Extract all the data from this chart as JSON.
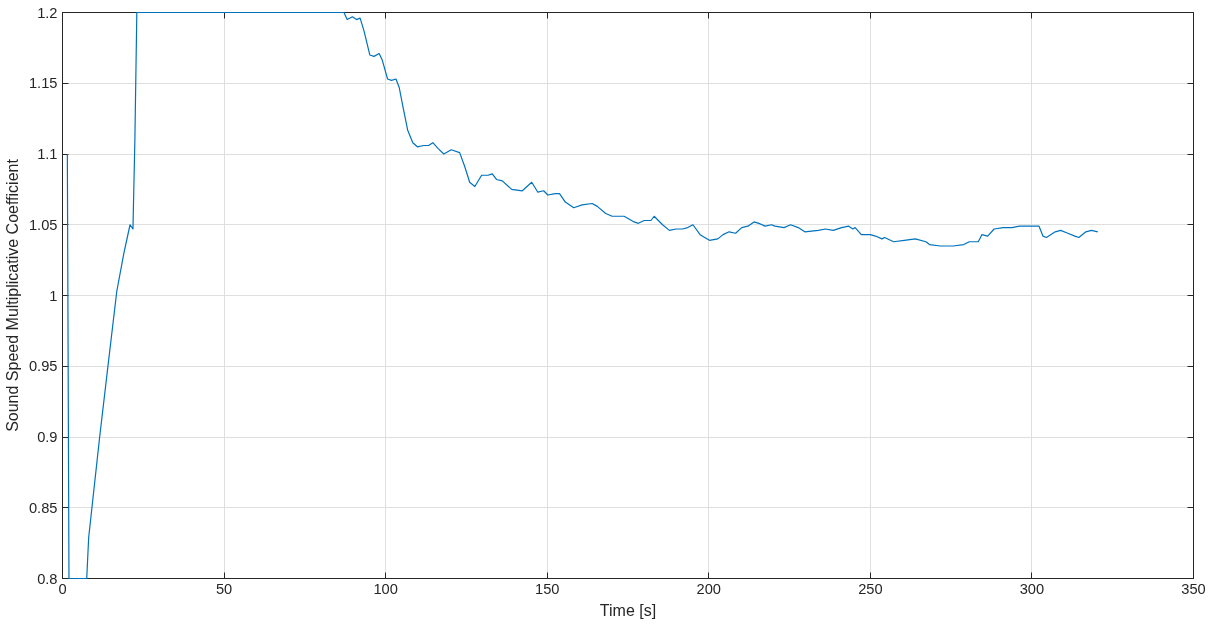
{
  "chart_data": {
    "type": "line",
    "xlabel": "Time [s]",
    "ylabel": "Sound Speed Multiplicative Coefficient",
    "xlim": [
      0,
      350
    ],
    "ylim": [
      0.8,
      1.2
    ],
    "xticks": [
      0,
      50,
      100,
      150,
      200,
      250,
      300,
      350
    ],
    "yticks": [
      0.8,
      0.85,
      0.9,
      0.95,
      1,
      1.05,
      1.1,
      1.15,
      1.2
    ],
    "grid": true,
    "marker": "none",
    "line_style": "solid",
    "series": [
      {
        "color": "#0072bd",
        "x": [
          1.5,
          2.0,
          7.5,
          8.1,
          11.5,
          13.7,
          16.8,
          19.0,
          20.9,
          21.8,
          22.4,
          23.0,
          87.1,
          88.1,
          89.7,
          91.0,
          92.1,
          93.3,
          95.1,
          96.4,
          98.0,
          99.0,
          100.6,
          101.8,
          103.2,
          104.2,
          105.3,
          106.8,
          108.4,
          109.9,
          111.8,
          113.3,
          114.6,
          116.2,
          118.0,
          120.3,
          122.9,
          124.5,
          126.0,
          127.6,
          129.7,
          131.7,
          133.0,
          134.3,
          136.1,
          139.0,
          142.3,
          145.2,
          147.1,
          148.9,
          150.2,
          152.5,
          153.8,
          155.6,
          158.2,
          160.8,
          163.9,
          165.5,
          168.1,
          170.1,
          173.8,
          176.9,
          178.2,
          180.0,
          182.1,
          183.1,
          185.7,
          187.8,
          189.9,
          191.9,
          193.5,
          195.1,
          197.3,
          200.2,
          202.8,
          204.4,
          206.3,
          208.3,
          210.2,
          212.1,
          214.0,
          215.5,
          217.4,
          219.4,
          220.5,
          223.3,
          225.3,
          227.7,
          229.7,
          233.9,
          236.1,
          238.5,
          241.1,
          243.3,
          244.6,
          245.3,
          247.2,
          250.0,
          251.6,
          253.6,
          254.4,
          257.2,
          260.5,
          263.9,
          267.2,
          268.3,
          271.7,
          273.9,
          275.6,
          278.9,
          280.6,
          282.2,
          283.4,
          284.5,
          286.3,
          288.3,
          291.1,
          293.9,
          296.1,
          299.5,
          302.2,
          303.4,
          304.5,
          307.2,
          308.9,
          311.1,
          313.3,
          314.5,
          316.7,
          318.4,
          320.4
        ],
        "values": [
          1.1,
          0.8,
          0.8,
          0.829,
          0.9,
          0.943,
          1.003,
          1.03,
          1.05,
          1.047,
          1.11,
          1.2,
          1.2,
          1.195,
          1.197,
          1.195,
          1.196,
          1.187,
          1.17,
          1.169,
          1.171,
          1.166,
          1.153,
          1.152,
          1.153,
          1.147,
          1.134,
          1.117,
          1.108,
          1.105,
          1.106,
          1.106,
          1.108,
          1.104,
          1.1,
          1.103,
          1.101,
          1.091,
          1.08,
          1.077,
          1.085,
          1.085,
          1.086,
          1.082,
          1.081,
          1.075,
          1.074,
          1.08,
          1.073,
          1.074,
          1.071,
          1.072,
          1.072,
          1.066,
          1.062,
          1.064,
          1.065,
          1.063,
          1.058,
          1.056,
          1.056,
          1.052,
          1.051,
          1.053,
          1.053,
          1.056,
          1.05,
          1.046,
          1.047,
          1.047,
          1.048,
          1.05,
          1.043,
          1.039,
          1.04,
          1.043,
          1.045,
          1.044,
          1.048,
          1.049,
          1.052,
          1.051,
          1.049,
          1.05,
          1.049,
          1.048,
          1.05,
          1.048,
          1.045,
          1.046,
          1.047,
          1.046,
          1.048,
          1.049,
          1.047,
          1.048,
          1.043,
          1.043,
          1.042,
          1.04,
          1.041,
          1.038,
          1.039,
          1.04,
          1.038,
          1.036,
          1.035,
          1.035,
          1.035,
          1.036,
          1.038,
          1.038,
          1.038,
          1.043,
          1.042,
          1.047,
          1.048,
          1.048,
          1.049,
          1.049,
          1.049,
          1.042,
          1.041,
          1.045,
          1.046,
          1.044,
          1.042,
          1.041,
          1.045,
          1.046,
          1.045
        ]
      }
    ]
  }
}
